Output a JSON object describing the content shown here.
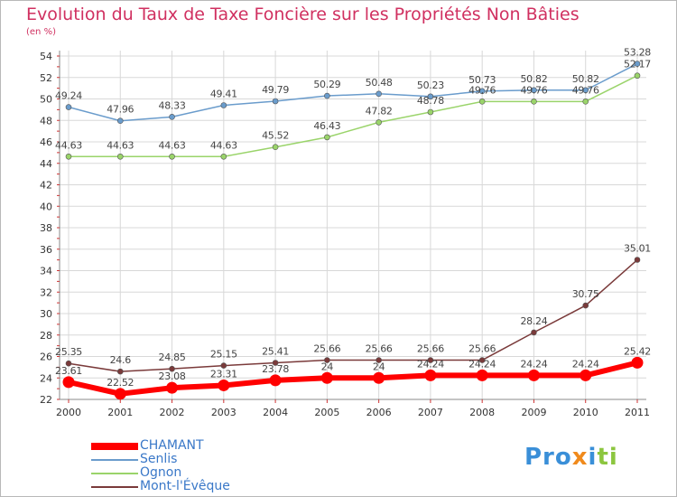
{
  "title": "Evolution du Taux de Taxe Foncière sur les Propriétés Non Bâties",
  "unit_label": "(en %)",
  "logo_text": "Proxiti",
  "chart_data": {
    "type": "line",
    "title": "Evolution du Taux de Taxe Foncière sur les Propriétés Non Bâties",
    "ylabel": "(en %)",
    "x": [
      "2000",
      "2001",
      "2002",
      "2003",
      "2004",
      "2005",
      "2006",
      "2007",
      "2008",
      "2009",
      "2010",
      "2011"
    ],
    "ylim": [
      22,
      54
    ],
    "yticks": [
      22,
      24,
      26,
      28,
      30,
      32,
      34,
      36,
      38,
      40,
      42,
      44,
      46,
      48,
      50,
      52,
      54
    ],
    "grid": true,
    "legend_position": "bottom-left",
    "series": [
      {
        "name": "CHAMANT",
        "color": "#ff0000",
        "values": [
          23.61,
          22.52,
          23.08,
          23.31,
          23.78,
          24,
          24,
          24.24,
          24.24,
          24.24,
          24.24,
          25.42
        ],
        "labels": [
          "23.61",
          "22.52",
          "23.08",
          "23.31",
          "23.78",
          "24",
          "24",
          "24.24",
          "24.24",
          "24.24",
          "24.24",
          "25.42"
        ]
      },
      {
        "name": "Senlis",
        "color": "#6a9ccc",
        "values": [
          49.24,
          47.96,
          48.33,
          49.41,
          49.79,
          50.29,
          50.48,
          50.23,
          50.73,
          50.82,
          50.82,
          53.28
        ],
        "labels": [
          "49.24",
          "47.96",
          "48.33",
          "49.41",
          "49.79",
          "50.29",
          "50.48",
          "50.23",
          "50.73",
          "50.82",
          "50.82",
          "53.28"
        ]
      },
      {
        "name": "Ognon",
        "color": "#9ad46a",
        "values": [
          44.63,
          44.63,
          44.63,
          44.63,
          45.52,
          46.43,
          47.82,
          48.78,
          49.76,
          49.76,
          49.76,
          52.17
        ],
        "labels": [
          "44.63",
          "44.63",
          "44.63",
          "44.63",
          "45.52",
          "46.43",
          "47.82",
          "48.78",
          "49.76",
          "49.76",
          "49.76",
          "52.17"
        ]
      },
      {
        "name": "Mont-l'Évêque",
        "color": "#7a3a3a",
        "values": [
          25.35,
          24.6,
          24.85,
          25.15,
          25.41,
          25.66,
          25.66,
          25.66,
          25.66,
          28.24,
          30.75,
          35.01
        ],
        "labels": [
          "25.35",
          "24.6",
          "24.85",
          "25.15",
          "25.41",
          "25.66",
          "25.66",
          "25.66",
          "25.66",
          "28.24",
          "30.75",
          "35.01"
        ]
      }
    ]
  }
}
